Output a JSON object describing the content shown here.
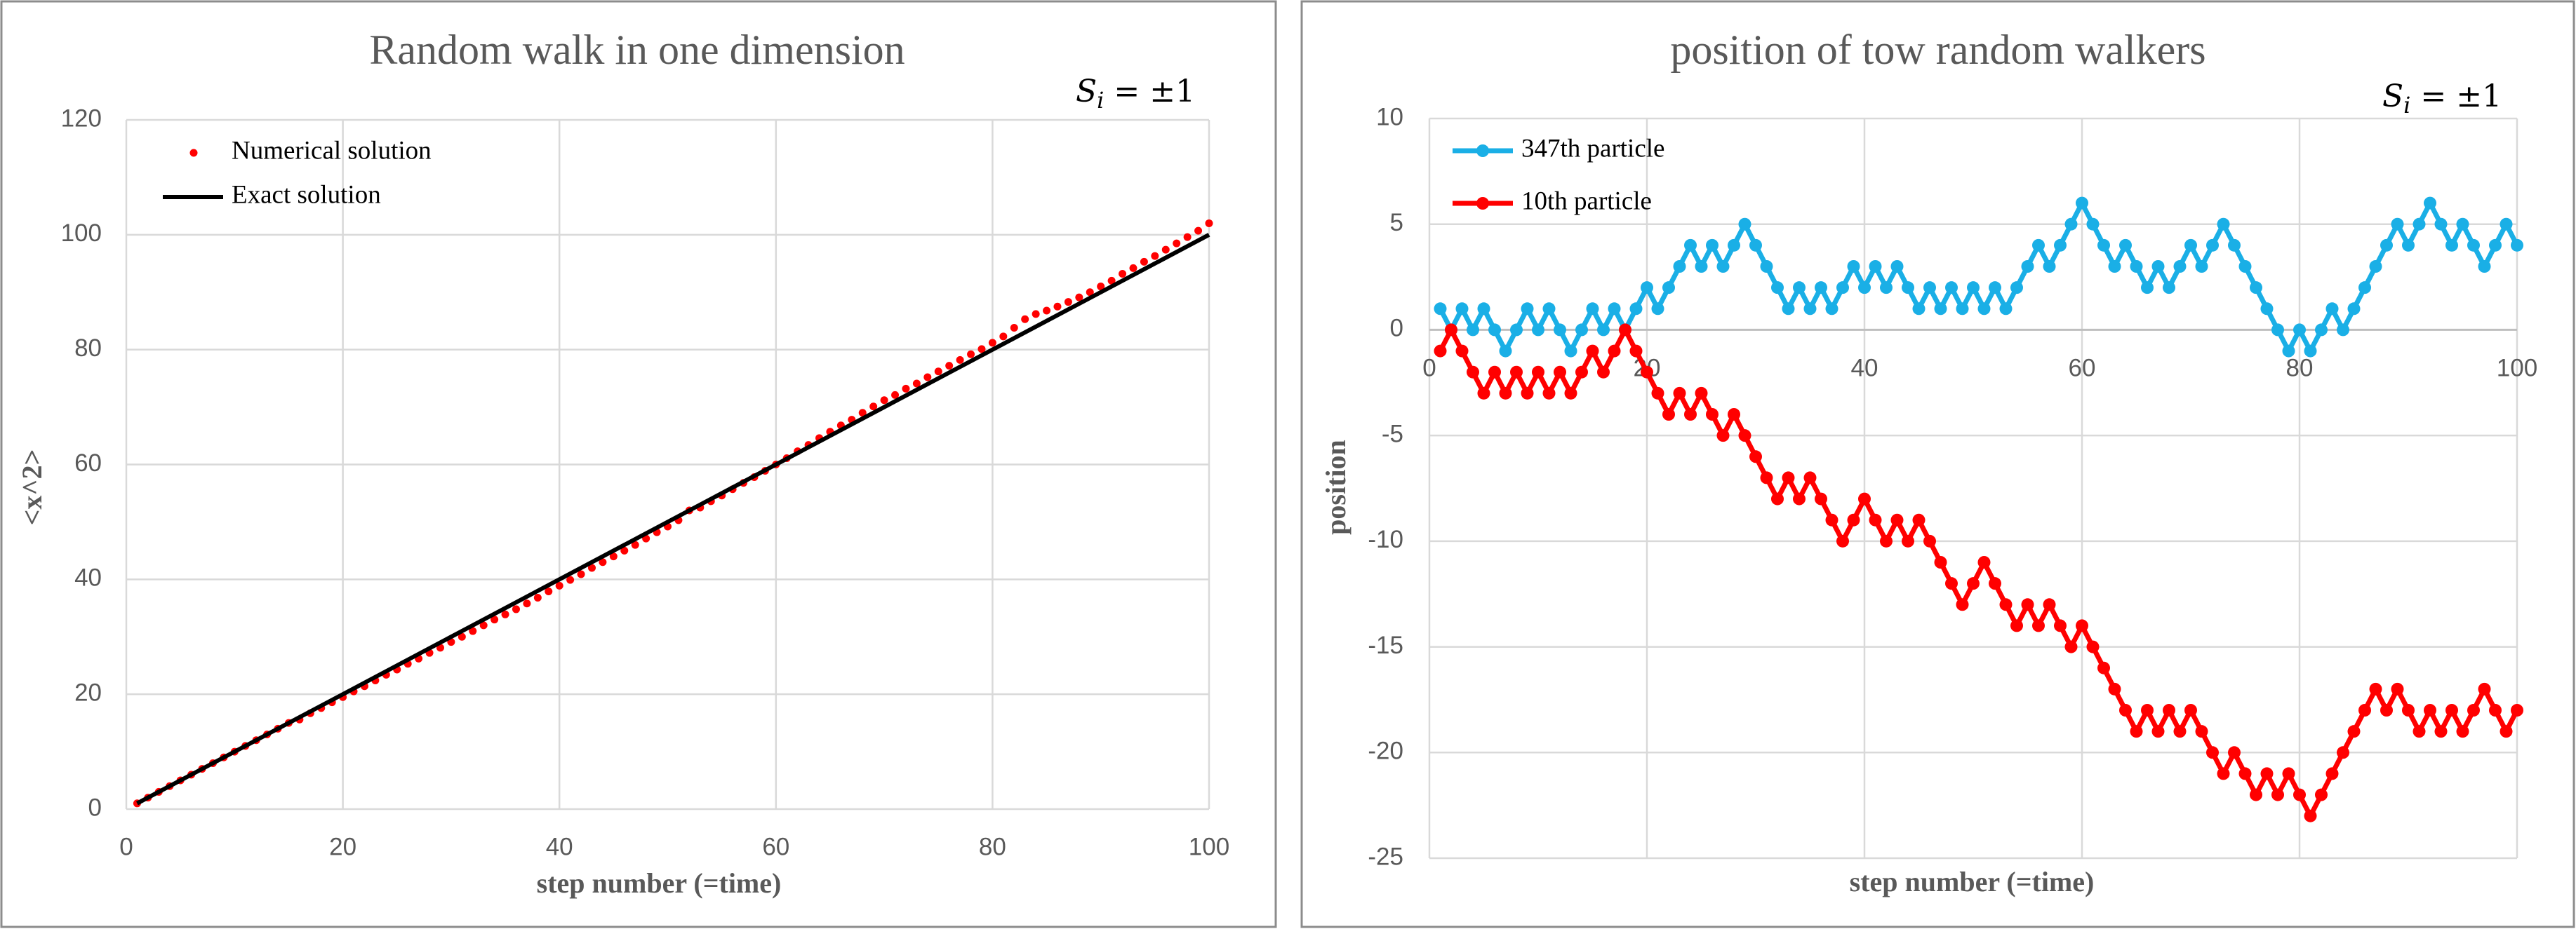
{
  "chart_data": [
    {
      "type": "scatter",
      "title": "Random walk in one dimension",
      "x_label": "step number (=time)",
      "y_label": "<x^2>",
      "annotation": {
        "symbol": "S",
        "subscript": "i",
        "rest": "= ±1"
      },
      "xlim": [
        0,
        100
      ],
      "xticks": [
        0,
        20,
        40,
        60,
        80,
        100
      ],
      "ylim": [
        0,
        120
      ],
      "yticks": [
        0,
        20,
        40,
        60,
        80,
        100,
        120
      ],
      "grid": true,
      "legend": "upper left",
      "series": [
        {
          "name": "Numerical solution",
          "color": "#ff0000",
          "style": "markers",
          "x": [
            1,
            2,
            3,
            4,
            5,
            6,
            7,
            8,
            9,
            10,
            11,
            12,
            13,
            14,
            15,
            16,
            17,
            18,
            19,
            20,
            21,
            22,
            23,
            24,
            25,
            26,
            27,
            28,
            29,
            30,
            31,
            32,
            33,
            34,
            35,
            36,
            37,
            38,
            39,
            40,
            41,
            42,
            43,
            44,
            45,
            46,
            47,
            48,
            49,
            50,
            51,
            52,
            53,
            54,
            55,
            56,
            57,
            58,
            59,
            60,
            61,
            62,
            63,
            64,
            65,
            66,
            67,
            68,
            69,
            70,
            71,
            72,
            73,
            74,
            75,
            76,
            77,
            78,
            79,
            80,
            81,
            82,
            83,
            84,
            85,
            86,
            87,
            88,
            89,
            90,
            91,
            92,
            93,
            94,
            95,
            96,
            97,
            98,
            99,
            100
          ],
          "values": [
            1,
            2,
            3,
            4,
            5,
            6,
            7,
            8,
            9,
            10,
            11,
            12,
            13,
            14,
            15,
            15.6,
            16.7,
            17.6,
            18.6,
            19.5,
            20.5,
            21.4,
            22.4,
            23.4,
            24.3,
            25.3,
            26.2,
            27.2,
            28.1,
            29.1,
            30,
            31,
            32,
            33,
            33.9,
            34.8,
            35.8,
            36.8,
            37.9,
            38.9,
            39.9,
            40.9,
            42,
            43,
            44,
            45,
            46,
            47.1,
            48.2,
            49.2,
            50.3,
            52,
            52.5,
            53.6,
            54.6,
            55.7,
            56.8,
            57.8,
            58.9,
            60,
            61.1,
            62.3,
            63.4,
            64.6,
            65.7,
            66.8,
            67.8,
            69,
            70.1,
            71.2,
            72.1,
            73.2,
            74.1,
            75.2,
            76.2,
            77.2,
            78.2,
            79.2,
            80.1,
            81.2,
            82.3,
            83.8,
            85.3,
            86.2,
            86.8,
            87.5,
            88.3,
            89.1,
            90,
            91,
            92,
            93.2,
            94.2,
            95.3,
            96.3,
            97.4,
            98.5,
            99.6,
            100.7,
            102
          ]
        },
        {
          "name": "Exact solution",
          "color": "#000000",
          "style": "line",
          "x": [
            1,
            100
          ],
          "values": [
            1,
            100
          ]
        }
      ]
    },
    {
      "type": "line",
      "title": "position of tow random walkers",
      "x_label": "step number (=time)",
      "y_label": "position",
      "annotation": {
        "symbol": "S",
        "subscript": "i",
        "rest": "= ±1"
      },
      "xlim": [
        0,
        100
      ],
      "xticks": [
        0,
        20,
        40,
        60,
        80,
        100
      ],
      "ylim": [
        -25,
        10
      ],
      "yticks": [
        -25,
        -20,
        -15,
        -10,
        -5,
        0,
        5,
        10
      ],
      "grid": true,
      "legend": "upper left",
      "series": [
        {
          "name": "347th particle",
          "color": "#1aafe6",
          "style": "line-markers",
          "x": [
            1,
            2,
            3,
            4,
            5,
            6,
            7,
            8,
            9,
            10,
            11,
            12,
            13,
            14,
            15,
            16,
            17,
            18,
            19,
            20,
            21,
            22,
            23,
            24,
            25,
            26,
            27,
            28,
            29,
            30,
            31,
            32,
            33,
            34,
            35,
            36,
            37,
            38,
            39,
            40,
            41,
            42,
            43,
            44,
            45,
            46,
            47,
            48,
            49,
            50,
            51,
            52,
            53,
            54,
            55,
            56,
            57,
            58,
            59,
            60,
            61,
            62,
            63,
            64,
            65,
            66,
            67,
            68,
            69,
            70,
            71,
            72,
            73,
            74,
            75,
            76,
            77,
            78,
            79,
            80,
            81,
            82,
            83,
            84,
            85,
            86,
            87,
            88,
            89,
            90,
            91,
            92,
            93,
            94,
            95,
            96,
            97,
            98,
            99,
            100
          ],
          "values": [
            1,
            0,
            1,
            0,
            1,
            0,
            -1,
            0,
            1,
            0,
            1,
            0,
            -1,
            0,
            1,
            0,
            1,
            0,
            1,
            2,
            1,
            2,
            3,
            4,
            3,
            4,
            3,
            4,
            5,
            4,
            3,
            2,
            1,
            2,
            1,
            2,
            1,
            2,
            3,
            2,
            3,
            2,
            3,
            2,
            1,
            2,
            1,
            2,
            1,
            2,
            1,
            2,
            1,
            2,
            3,
            4,
            3,
            4,
            5,
            6,
            5,
            4,
            3,
            4,
            3,
            2,
            3,
            2,
            3,
            4,
            3,
            4,
            5,
            4,
            3,
            2,
            1,
            0,
            -1,
            0,
            -1,
            0,
            1,
            0,
            1,
            2,
            3,
            4,
            5,
            4,
            5,
            6,
            5,
            4,
            5,
            4,
            3,
            4,
            5,
            4
          ]
        },
        {
          "name": "10th particle",
          "color": "#ff0000",
          "style": "line-markers",
          "x": [
            1,
            2,
            3,
            4,
            5,
            6,
            7,
            8,
            9,
            10,
            11,
            12,
            13,
            14,
            15,
            16,
            17,
            18,
            19,
            20,
            21,
            22,
            23,
            24,
            25,
            26,
            27,
            28,
            29,
            30,
            31,
            32,
            33,
            34,
            35,
            36,
            37,
            38,
            39,
            40,
            41,
            42,
            43,
            44,
            45,
            46,
            47,
            48,
            49,
            50,
            51,
            52,
            53,
            54,
            55,
            56,
            57,
            58,
            59,
            60,
            61,
            62,
            63,
            64,
            65,
            66,
            67,
            68,
            69,
            70,
            71,
            72,
            73,
            74,
            75,
            76,
            77,
            78,
            79,
            80,
            81,
            82,
            83,
            84,
            85,
            86,
            87,
            88,
            89,
            90,
            91,
            92,
            93,
            94,
            95,
            96,
            97,
            98,
            99,
            100
          ],
          "values": [
            -1,
            0,
            -1,
            -2,
            -3,
            -2,
            -3,
            -2,
            -3,
            -2,
            -3,
            -2,
            -3,
            -2,
            -1,
            -2,
            -1,
            0,
            -1,
            -2,
            -3,
            -4,
            -3,
            -4,
            -3,
            -4,
            -5,
            -4,
            -5,
            -6,
            -7,
            -8,
            -7,
            -8,
            -7,
            -8,
            -9,
            -10,
            -9,
            -8,
            -9,
            -10,
            -9,
            -10,
            -9,
            -10,
            -11,
            -12,
            -13,
            -12,
            -11,
            -12,
            -13,
            -14,
            -13,
            -14,
            -13,
            -14,
            -15,
            -14,
            -15,
            -16,
            -17,
            -18,
            -19,
            -18,
            -19,
            -18,
            -19,
            -18,
            -19,
            -20,
            -21,
            -20,
            -21,
            -22,
            -21,
            -22,
            -21,
            -22,
            -23,
            -22,
            -21,
            -20,
            -19,
            -18,
            -17,
            -18,
            -17,
            -18,
            -19,
            -18,
            -19,
            -18,
            -19,
            -18,
            -17,
            -18,
            -19,
            -18
          ]
        }
      ]
    }
  ]
}
